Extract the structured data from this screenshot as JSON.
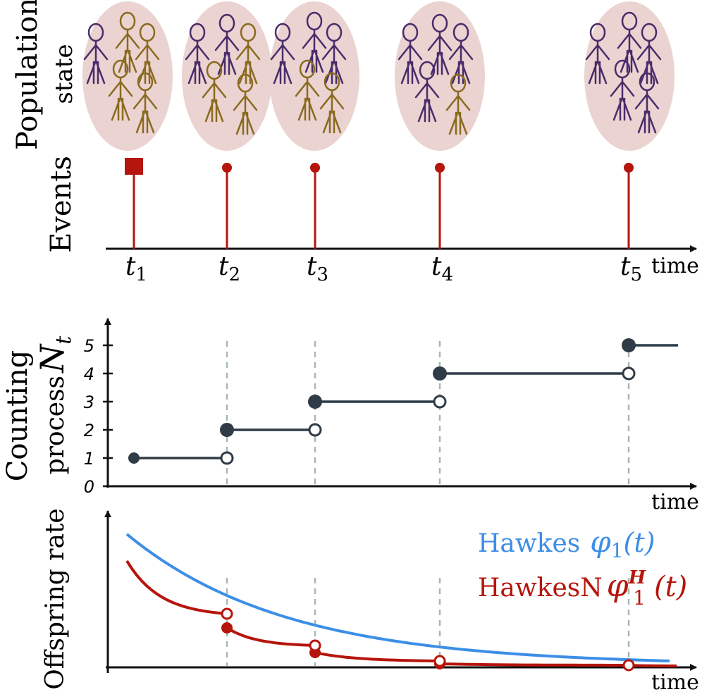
{
  "population": {
    "ylabel_line1": "Population",
    "ylabel_line2": "state",
    "groups": [
      {
        "purple": 1,
        "gold": 4
      },
      {
        "purple": 2,
        "gold": 3
      },
      {
        "purple": 3,
        "gold": 2
      },
      {
        "purple": 4,
        "gold": 1
      },
      {
        "purple": 5,
        "gold": 0
      }
    ],
    "colors": {
      "ellipse": "#ead3d1",
      "purple": "#4a2c6b",
      "gold": "#8a6a1e"
    }
  },
  "events": {
    "ylabel": "Events",
    "xlabel": "time",
    "labels": [
      {
        "base": "t",
        "sub": "1"
      },
      {
        "base": "t",
        "sub": "2"
      },
      {
        "base": "t",
        "sub": "3"
      },
      {
        "base": "t",
        "sub": "4"
      },
      {
        "base": "t",
        "sub": "5"
      }
    ],
    "first_marker": "square",
    "color": "#b5150c"
  },
  "counting": {
    "ylabel_line1": "Counting",
    "ylabel_line2": "process",
    "ylabel_symbol": {
      "base": "N",
      "sub": "t"
    },
    "xlabel": "time",
    "yticks": [
      "0",
      "1",
      "2",
      "3",
      "4",
      "5"
    ],
    "color": "#2f3c47"
  },
  "offspring": {
    "ylabel": "Offspring rate",
    "xlabel": "time",
    "hawkes_legend": "Hawkes",
    "hawkesn_legend": "HawkesN",
    "hawkes_symbol": {
      "base": "φ",
      "sub": "1",
      "arg": "(t)"
    },
    "hawkesn_symbol": {
      "base": "φ",
      "sub": "1",
      "sup": "H",
      "arg": "(t)"
    },
    "colors": {
      "hawkes": "#3d8ee6",
      "hawkesn": "#b5150c"
    }
  },
  "chart_data": [
    {
      "type": "line",
      "title": "",
      "xlabel": "time",
      "ylabel": "Counting process N_t",
      "step": true,
      "x": [
        "t_1",
        "t_2",
        "t_3",
        "t_4",
        "t_5"
      ],
      "values": [
        1,
        2,
        3,
        4,
        5
      ],
      "ylim": [
        0,
        5
      ]
    },
    {
      "type": "line",
      "title": "",
      "xlabel": "time",
      "ylabel": "Offspring rate",
      "x": [
        "t_1",
        "t_2",
        "t_3",
        "t_4",
        "t_5"
      ],
      "series": [
        {
          "name": "Hawkes φ_1(t)",
          "values": [
            0.76,
            0.46,
            0.25,
            0.11,
            0.02
          ]
        },
        {
          "name": "HawkesN φ_1^H(t)",
          "values_before_event": [
            0.62,
            0.29,
            0.12,
            0.04,
            0.01
          ],
          "values_after_event": [
            0.62,
            0.21,
            0.08,
            0.03,
            0.0
          ]
        }
      ]
    }
  ]
}
